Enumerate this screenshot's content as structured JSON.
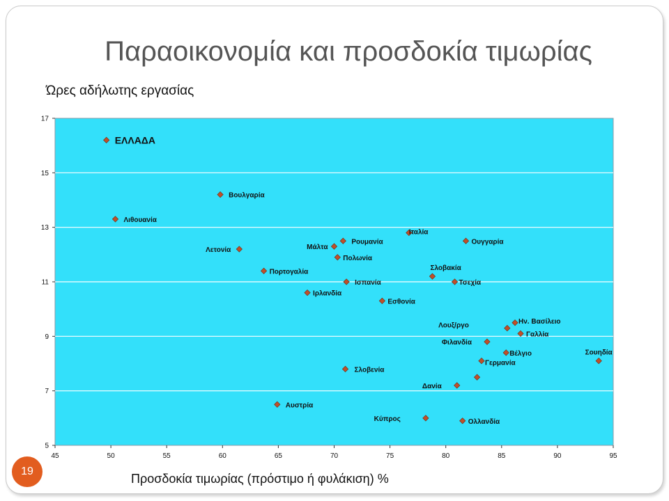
{
  "slide": {
    "title": "Παραοικονομία και προσδοκία τιμωρίας",
    "page_number": "19",
    "badge_color": "#e25d1f"
  },
  "chart_data": {
    "type": "scatter",
    "ylabel": "Ώρες αδήλωτης εργασίας",
    "xlabel": "Προσδοκία τιμωρίας (πρόστιμο ή φυλάκιση) %",
    "xlim": [
      45,
      95
    ],
    "ylim": [
      5,
      17
    ],
    "xticks": [
      "45",
      "50",
      "55",
      "60",
      "65",
      "70",
      "75",
      "80",
      "85",
      "90",
      "95"
    ],
    "yticks": [
      "5",
      "7",
      "9",
      "11",
      "13",
      "15",
      "17"
    ],
    "grid": "horizontal",
    "plot_background": "#33e0fa",
    "marker_color": "#c0502a",
    "points": [
      {
        "label": "ΕΛΛΑΔΑ",
        "x": 49.6,
        "y": 16.2,
        "emphasis": true
      },
      {
        "label": "Βουλγαρία",
        "x": 59.8,
        "y": 14.2
      },
      {
        "label": "Λιθουανία",
        "x": 50.4,
        "y": 13.3
      },
      {
        "label": "Λετονία",
        "x": 61.5,
        "y": 12.2
      },
      {
        "label": "Πορτογαλία",
        "x": 63.7,
        "y": 11.4
      },
      {
        "label": "Ιρλανδία",
        "x": 67.6,
        "y": 10.6
      },
      {
        "label": "Μάλτα",
        "x": 70.0,
        "y": 12.3
      },
      {
        "label": "Ρουμανία",
        "x": 70.8,
        "y": 12.5
      },
      {
        "label": "Πολωνία",
        "x": 70.3,
        "y": 11.9
      },
      {
        "label": "Ισπανία",
        "x": 71.1,
        "y": 11.0
      },
      {
        "label": "Ιταλία",
        "x": 76.7,
        "y": 12.8
      },
      {
        "label": "Ουγγαρία",
        "x": 81.8,
        "y": 12.5
      },
      {
        "label": "Σλοβακία",
        "x": 78.8,
        "y": 11.2
      },
      {
        "label": "Τσεχία",
        "x": 80.8,
        "y": 11.0
      },
      {
        "label": "Εσθονία",
        "x": 74.3,
        "y": 10.3
      },
      {
        "label": "Ην. Βασίλειο",
        "x": 86.2,
        "y": 9.5
      },
      {
        "label": "Λουξ/ργο",
        "x": 85.5,
        "y": 9.3
      },
      {
        "label": "Γαλλία",
        "x": 86.7,
        "y": 9.1
      },
      {
        "label": "Φιλανδία",
        "x": 83.7,
        "y": 8.8
      },
      {
        "label": "Βέλγιο",
        "x": 85.4,
        "y": 8.4
      },
      {
        "label": "Σουηδία",
        "x": 93.7,
        "y": 8.1
      },
      {
        "label": "Γερμανία",
        "x": 83.2,
        "y": 8.1
      },
      {
        "label": "Σλοβενία",
        "x": 71.0,
        "y": 7.8
      },
      {
        "label": "Δανία",
        "x": 81.0,
        "y": 7.2
      },
      {
        "label": "",
        "x": 82.8,
        "y": 7.5
      },
      {
        "label": "Αυστρία",
        "x": 64.9,
        "y": 6.5
      },
      {
        "label": "Κύπρος",
        "x": 78.2,
        "y": 6.0
      },
      {
        "label": "Ολλανδία",
        "x": 81.5,
        "y": 5.9
      }
    ]
  }
}
